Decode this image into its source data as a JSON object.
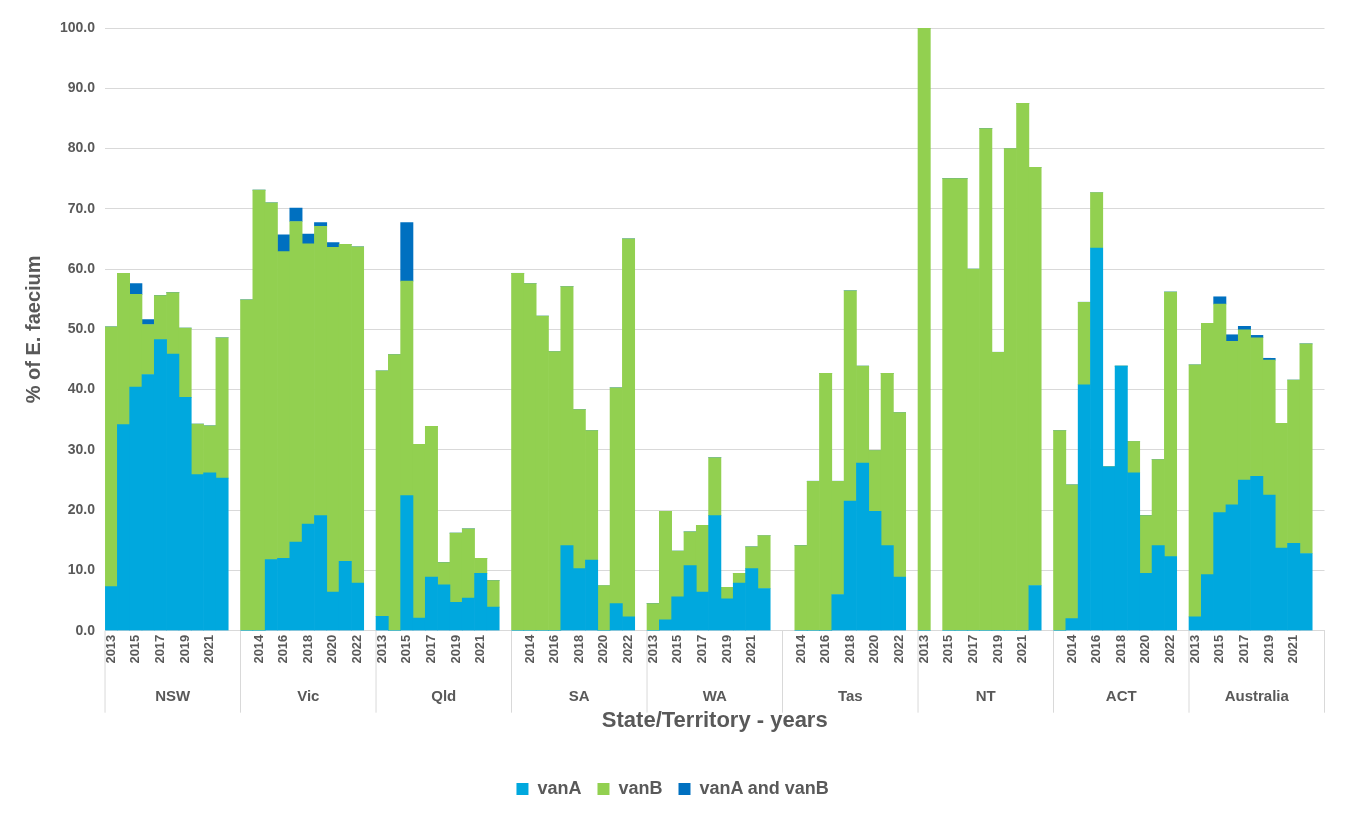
{
  "chart_data": {
    "type": "bar",
    "stacked": true,
    "ylabel": "% of E. faecium",
    "xlabel": "State/Territory - years",
    "categories": [
      "2013",
      null,
      "2015",
      null,
      "2017",
      null,
      "2019",
      null,
      "2021",
      null,
      null,
      null,
      "2014",
      null,
      "2016",
      null,
      "2018",
      null,
      "2020",
      null,
      "2022",
      null,
      "2013",
      null,
      "2015",
      null,
      "2017",
      null,
      "2019",
      null,
      "2021",
      null,
      null,
      null,
      "2014",
      null,
      "2016",
      null,
      "2018",
      null,
      "2020",
      null,
      "2022",
      null,
      "2013",
      null,
      "2015",
      null,
      "2017",
      null,
      "2019",
      null,
      "2021",
      null,
      null,
      null,
      "2014",
      null,
      "2016",
      null,
      "2018",
      null,
      "2020",
      null,
      "2022",
      null,
      "2013",
      null,
      "2015",
      null,
      "2017",
      null,
      "2019",
      null,
      "2021",
      null,
      null,
      null,
      "2014",
      null,
      "2016",
      null,
      "2018",
      null,
      "2020",
      null,
      "2022",
      null,
      "2013",
      null,
      "2015",
      null,
      "2017",
      null,
      "2019",
      null,
      "2021",
      null,
      null
    ],
    "series": [
      {
        "name": "vanA",
        "color": "#00a8de",
        "values": [
          7.3,
          34.2,
          40.4,
          42.5,
          48.3,
          45.9,
          38.7,
          25.9,
          26.2,
          25.3,
          null,
          0,
          0,
          11.8,
          12.0,
          14.7,
          17.7,
          19.1,
          6.4,
          11.5,
          7.9,
          null,
          2.4,
          0,
          22.4,
          2.1,
          8.9,
          7.6,
          4.7,
          5.4,
          9.5,
          3.9,
          null,
          0,
          0,
          0,
          0,
          14.1,
          10.3,
          11.7,
          0,
          4.5,
          2.3,
          null,
          0,
          1.8,
          5.6,
          10.8,
          6.4,
          19.1,
          5.3,
          7.9,
          10.3,
          7.0,
          null,
          null,
          0,
          0,
          0,
          6.0,
          21.5,
          27.8,
          19.8,
          14.1,
          8.9,
          null,
          0,
          null,
          0,
          0,
          0,
          0,
          0,
          0,
          0,
          7.5,
          null,
          0,
          2.0,
          40.8,
          63.5,
          27.2,
          43.9,
          26.2,
          9.5,
          14.1,
          12.3,
          null,
          2.3,
          9.3,
          19.6,
          20.9,
          25.0,
          25.6,
          22.5,
          13.7,
          14.5,
          12.8,
          null
        ]
      },
      {
        "name": "vanB",
        "color": "#92d050",
        "values": [
          43.1,
          25.1,
          15.4,
          8.3,
          7.3,
          10.2,
          11.5,
          8.4,
          7.8,
          23.3,
          null,
          54.9,
          73.1,
          59.2,
          50.9,
          53.2,
          46.5,
          48.0,
          57.2,
          52.6,
          55.8,
          null,
          40.7,
          45.8,
          35.6,
          28.8,
          25.0,
          3.7,
          11.5,
          11.5,
          2.5,
          4.4,
          null,
          59.3,
          57.6,
          52.2,
          46.3,
          43.0,
          26.4,
          21.5,
          7.5,
          35.8,
          62.7,
          null,
          4.5,
          18.0,
          7.6,
          5.6,
          11.1,
          9.6,
          1.9,
          1.6,
          3.6,
          8.8,
          null,
          null,
          14.1,
          24.8,
          42.7,
          18.8,
          34.9,
          16.1,
          10.1,
          28.6,
          27.3,
          null,
          100,
          null,
          75.0,
          75.0,
          60.0,
          83.3,
          46.2,
          80.0,
          87.5,
          69.4,
          null,
          33.2,
          22.2,
          13.7,
          9.2,
          0,
          0,
          5.2,
          9.6,
          14.3,
          43.9,
          null,
          41.8,
          41.7,
          34.6,
          27.1,
          24.9,
          23.0,
          22.4,
          20.7,
          27.1,
          34.8,
          null
        ]
      },
      {
        "name": "vanA and vanB",
        "color": "#0070c0",
        "values": [
          0,
          0,
          1.8,
          0.8,
          0,
          0,
          0,
          0,
          0,
          0,
          null,
          0,
          0,
          0,
          2.8,
          2.2,
          1.6,
          0.6,
          0.8,
          0,
          0,
          null,
          0,
          0,
          9.7,
          0,
          0,
          0,
          0,
          0,
          0,
          0,
          null,
          0,
          0,
          0,
          0,
          0,
          0,
          0,
          0,
          0,
          0,
          null,
          0,
          0,
          0,
          0,
          0,
          0,
          0,
          0,
          0,
          0,
          null,
          null,
          0,
          0,
          0,
          0,
          0,
          0,
          0,
          0,
          0,
          null,
          0,
          null,
          0,
          0,
          0,
          0,
          0,
          0,
          0,
          0,
          null,
          0,
          0,
          0,
          0,
          0,
          0,
          0,
          0,
          0,
          0,
          null,
          0,
          0,
          1.2,
          1.1,
          0.6,
          0.4,
          0.3,
          null,
          0,
          0,
          null
        ]
      }
    ],
    "ylim": [
      0,
      100
    ],
    "yticks": [
      {
        "value": 0,
        "label": "0.0"
      },
      {
        "value": 10,
        "label": "10.0"
      },
      {
        "value": 20,
        "label": "20.0"
      },
      {
        "value": 30,
        "label": "30.0"
      },
      {
        "value": 40,
        "label": "40.0"
      },
      {
        "value": 50,
        "label": "50.0"
      },
      {
        "value": 60,
        "label": "60.0"
      },
      {
        "value": 70,
        "label": "70.0"
      },
      {
        "value": 80,
        "label": "80.0"
      },
      {
        "value": 90,
        "label": "90.0"
      },
      {
        "value": 100,
        "label": "100.0"
      }
    ],
    "grid": "y",
    "legend": "bottom",
    "annotations": [
      "NSW",
      "Vic",
      "Qld",
      "SA",
      "WA",
      "Tas",
      "NT",
      "ACT",
      "Australia"
    ]
  }
}
